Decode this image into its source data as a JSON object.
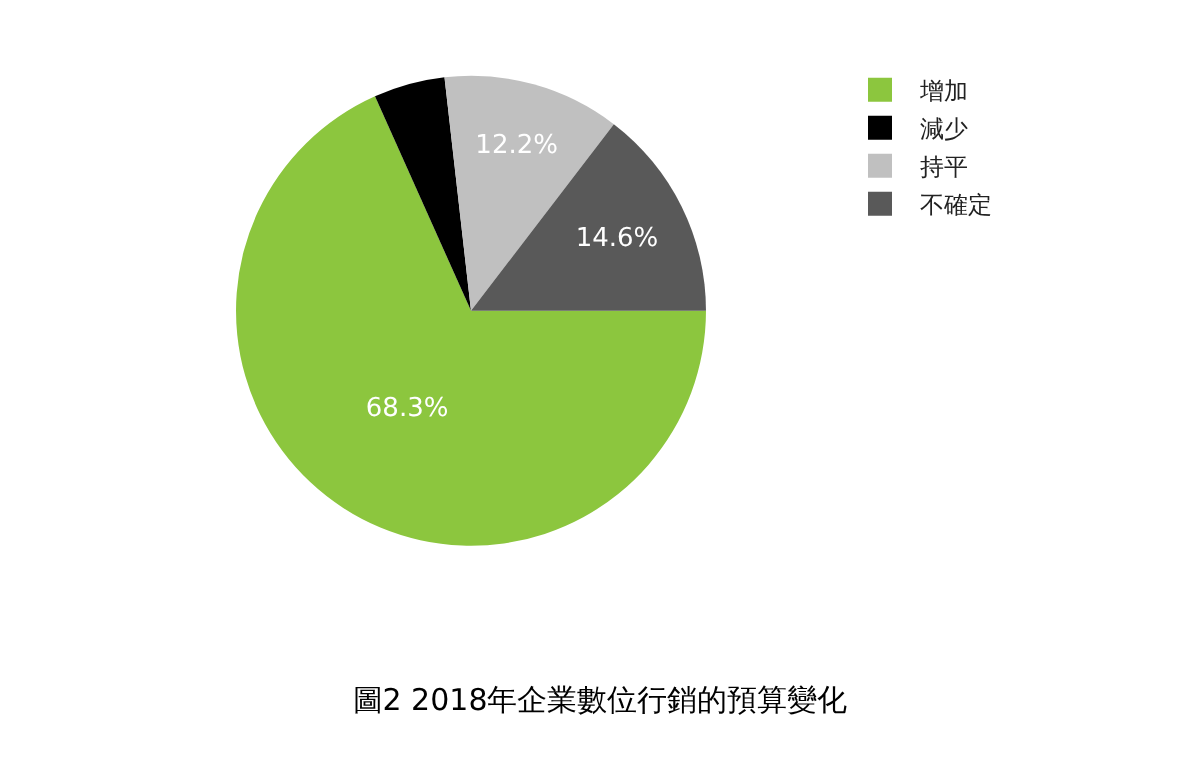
{
  "chart_data": {
    "type": "pie",
    "title": "圖2 2018年企業數位行銷的預算變化",
    "categories": [
      "增加",
      "減少",
      "持平",
      "不確定"
    ],
    "values": [
      68.3,
      4.9,
      12.2,
      14.6
    ],
    "colors": [
      "#8cc63e",
      "#000000",
      "#c0c0c0",
      "#595959"
    ],
    "value_labels": [
      "68.3%",
      null,
      "12.2%",
      "14.6%"
    ],
    "legend": "top right"
  }
}
